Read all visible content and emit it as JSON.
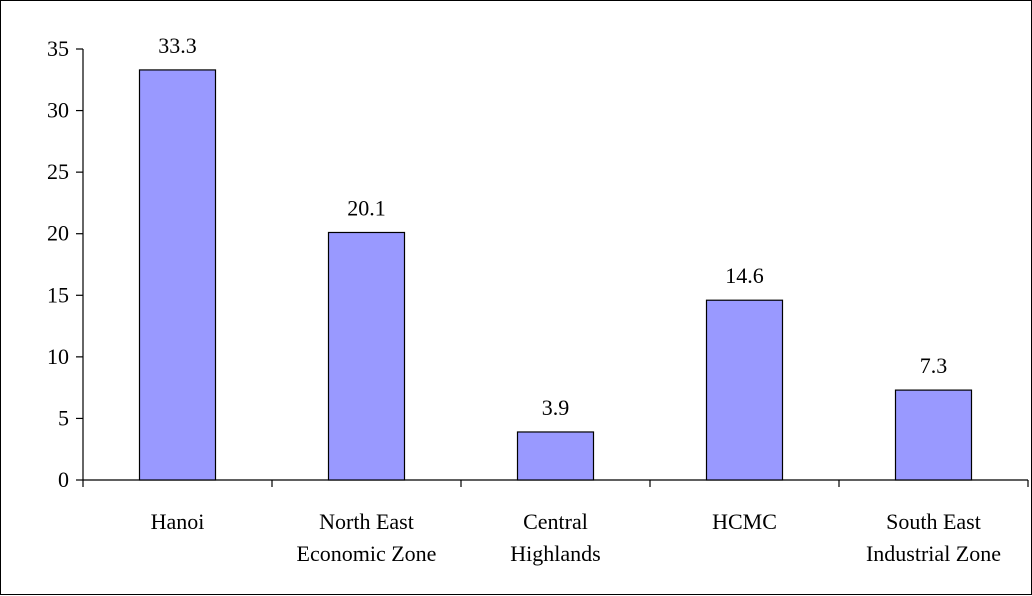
{
  "chart_data": {
    "type": "bar",
    "title": "",
    "xlabel": "",
    "ylabel": "",
    "categories": [
      [
        "Hanoi"
      ],
      [
        "North East",
        "Economic Zone"
      ],
      [
        "Central",
        "Highlands"
      ],
      [
        "HCMC"
      ],
      [
        "South East",
        "Industrial Zone"
      ]
    ],
    "values": [
      33.3,
      20.1,
      3.9,
      14.6,
      7.3
    ],
    "data_labels": [
      "33.3",
      "20.1",
      "3.9",
      "14.6",
      "7.3"
    ],
    "ylim": [
      0,
      35
    ],
    "yticks": [
      0,
      5,
      10,
      15,
      20,
      25,
      30,
      35
    ],
    "ytick_labels": [
      "0",
      "5",
      "10",
      "15",
      "20",
      "25",
      "30",
      "35"
    ],
    "grid": false,
    "legend": "none",
    "bar_color": "#9999ff",
    "bar_edge_color": "#000000"
  }
}
